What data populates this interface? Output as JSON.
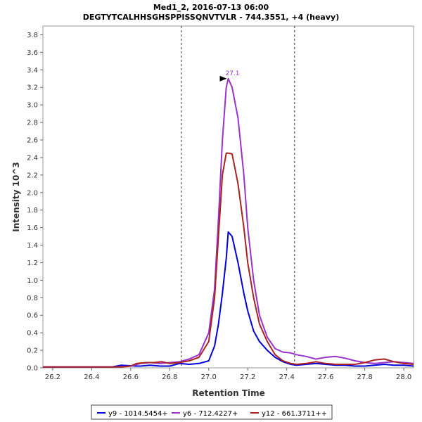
{
  "chart_data": {
    "type": "line",
    "title": "Med1_2, 2016-07-13 06:00",
    "subtitle": "DEGTYTCALHHSGHSPPISSQNVTVLR - 744.3551, +4 (heavy)",
    "xlabel": "Retention Time",
    "ylabel": "Intensity 10^3",
    "xlim": [
      26.15,
      28.05
    ],
    "ylim": [
      0,
      3.9
    ],
    "x_ticks": [
      26.2,
      26.4,
      26.6,
      26.8,
      27.0,
      27.2,
      27.4,
      27.6,
      27.8,
      28.0
    ],
    "x_tick_labels": [
      "26.2",
      "26.4",
      "26.6",
      "26.8",
      "27.0",
      "27.2",
      "27.4",
      "27.6",
      "27.8",
      "28.0"
    ],
    "y_ticks": [
      0.0,
      0.2,
      0.4,
      0.6,
      0.8,
      1.0,
      1.2,
      1.4,
      1.6,
      1.8,
      2.0,
      2.2,
      2.4,
      2.6,
      2.8,
      3.0,
      3.2,
      3.4,
      3.6,
      3.8
    ],
    "y_tick_labels": [
      "0.0",
      "0.2",
      "0.4",
      "0.6",
      "0.8",
      "1.0",
      "1.2",
      "1.4",
      "1.6",
      "1.8",
      "2.0",
      "2.2",
      "2.4",
      "2.6",
      "2.8",
      "3.0",
      "3.2",
      "3.4",
      "3.6",
      "3.8"
    ],
    "boundaries": [
      26.86,
      27.44
    ],
    "peak_annotation": {
      "label": "27.1",
      "x": 27.1,
      "y": 3.3,
      "color": "#9933cc"
    },
    "legend_position": "bottom",
    "series": [
      {
        "name": "y9 - 1014.5454+",
        "color": "#0000dd",
        "x": [
          26.15,
          26.5,
          26.55,
          26.63,
          26.65,
          26.7,
          26.75,
          26.8,
          26.85,
          26.9,
          26.95,
          27.0,
          27.03,
          27.05,
          27.07,
          27.09,
          27.1,
          27.12,
          27.15,
          27.18,
          27.2,
          27.23,
          27.26,
          27.3,
          27.34,
          27.38,
          27.42,
          27.45,
          27.5,
          27.55,
          27.6,
          27.65,
          27.7,
          27.75,
          27.8,
          27.85,
          27.9,
          27.95,
          28.0,
          28.05
        ],
        "y": [
          0.01,
          0.01,
          0.03,
          0.02,
          0.02,
          0.03,
          0.02,
          0.02,
          0.05,
          0.04,
          0.05,
          0.08,
          0.25,
          0.5,
          0.85,
          1.25,
          1.55,
          1.5,
          1.2,
          0.85,
          0.65,
          0.42,
          0.3,
          0.2,
          0.12,
          0.07,
          0.04,
          0.03,
          0.04,
          0.05,
          0.04,
          0.03,
          0.03,
          0.02,
          0.02,
          0.03,
          0.04,
          0.03,
          0.03,
          0.02
        ]
      },
      {
        "name": "y6 - 712.4227+",
        "color": "#9933cc",
        "x": [
          26.15,
          26.5,
          26.6,
          26.65,
          26.7,
          26.75,
          26.8,
          26.85,
          26.9,
          26.95,
          27.0,
          27.03,
          27.05,
          27.07,
          27.09,
          27.1,
          27.12,
          27.15,
          27.18,
          27.2,
          27.23,
          27.26,
          27.3,
          27.34,
          27.38,
          27.42,
          27.45,
          27.5,
          27.55,
          27.6,
          27.65,
          27.7,
          27.75,
          27.8,
          27.85,
          27.9,
          27.95,
          28.0,
          28.05
        ],
        "y": [
          0.01,
          0.01,
          0.02,
          0.05,
          0.06,
          0.05,
          0.06,
          0.07,
          0.1,
          0.15,
          0.4,
          0.9,
          1.7,
          2.6,
          3.2,
          3.3,
          3.2,
          2.85,
          2.2,
          1.6,
          1.0,
          0.6,
          0.35,
          0.22,
          0.18,
          0.17,
          0.15,
          0.13,
          0.1,
          0.12,
          0.13,
          0.11,
          0.08,
          0.06,
          0.05,
          0.06,
          0.07,
          0.06,
          0.05
        ]
      },
      {
        "name": "y12 - 661.3711++",
        "color": "#aa2222",
        "x": [
          26.15,
          26.5,
          26.55,
          26.6,
          26.63,
          26.68,
          26.72,
          26.76,
          26.8,
          26.85,
          26.9,
          26.95,
          27.0,
          27.03,
          27.05,
          27.07,
          27.09,
          27.1,
          27.12,
          27.15,
          27.18,
          27.2,
          27.23,
          27.26,
          27.3,
          27.34,
          27.38,
          27.42,
          27.45,
          27.5,
          27.55,
          27.6,
          27.65,
          27.7,
          27.75,
          27.8,
          27.85,
          27.9,
          27.95,
          28.0,
          28.05
        ],
        "y": [
          0.01,
          0.01,
          0.01,
          0.02,
          0.05,
          0.06,
          0.06,
          0.07,
          0.05,
          0.06,
          0.08,
          0.12,
          0.3,
          0.8,
          1.5,
          2.2,
          2.45,
          2.45,
          2.44,
          2.1,
          1.6,
          1.2,
          0.8,
          0.5,
          0.3,
          0.15,
          0.08,
          0.05,
          0.04,
          0.05,
          0.07,
          0.05,
          0.04,
          0.04,
          0.04,
          0.06,
          0.09,
          0.1,
          0.07,
          0.05,
          0.04
        ]
      }
    ]
  }
}
